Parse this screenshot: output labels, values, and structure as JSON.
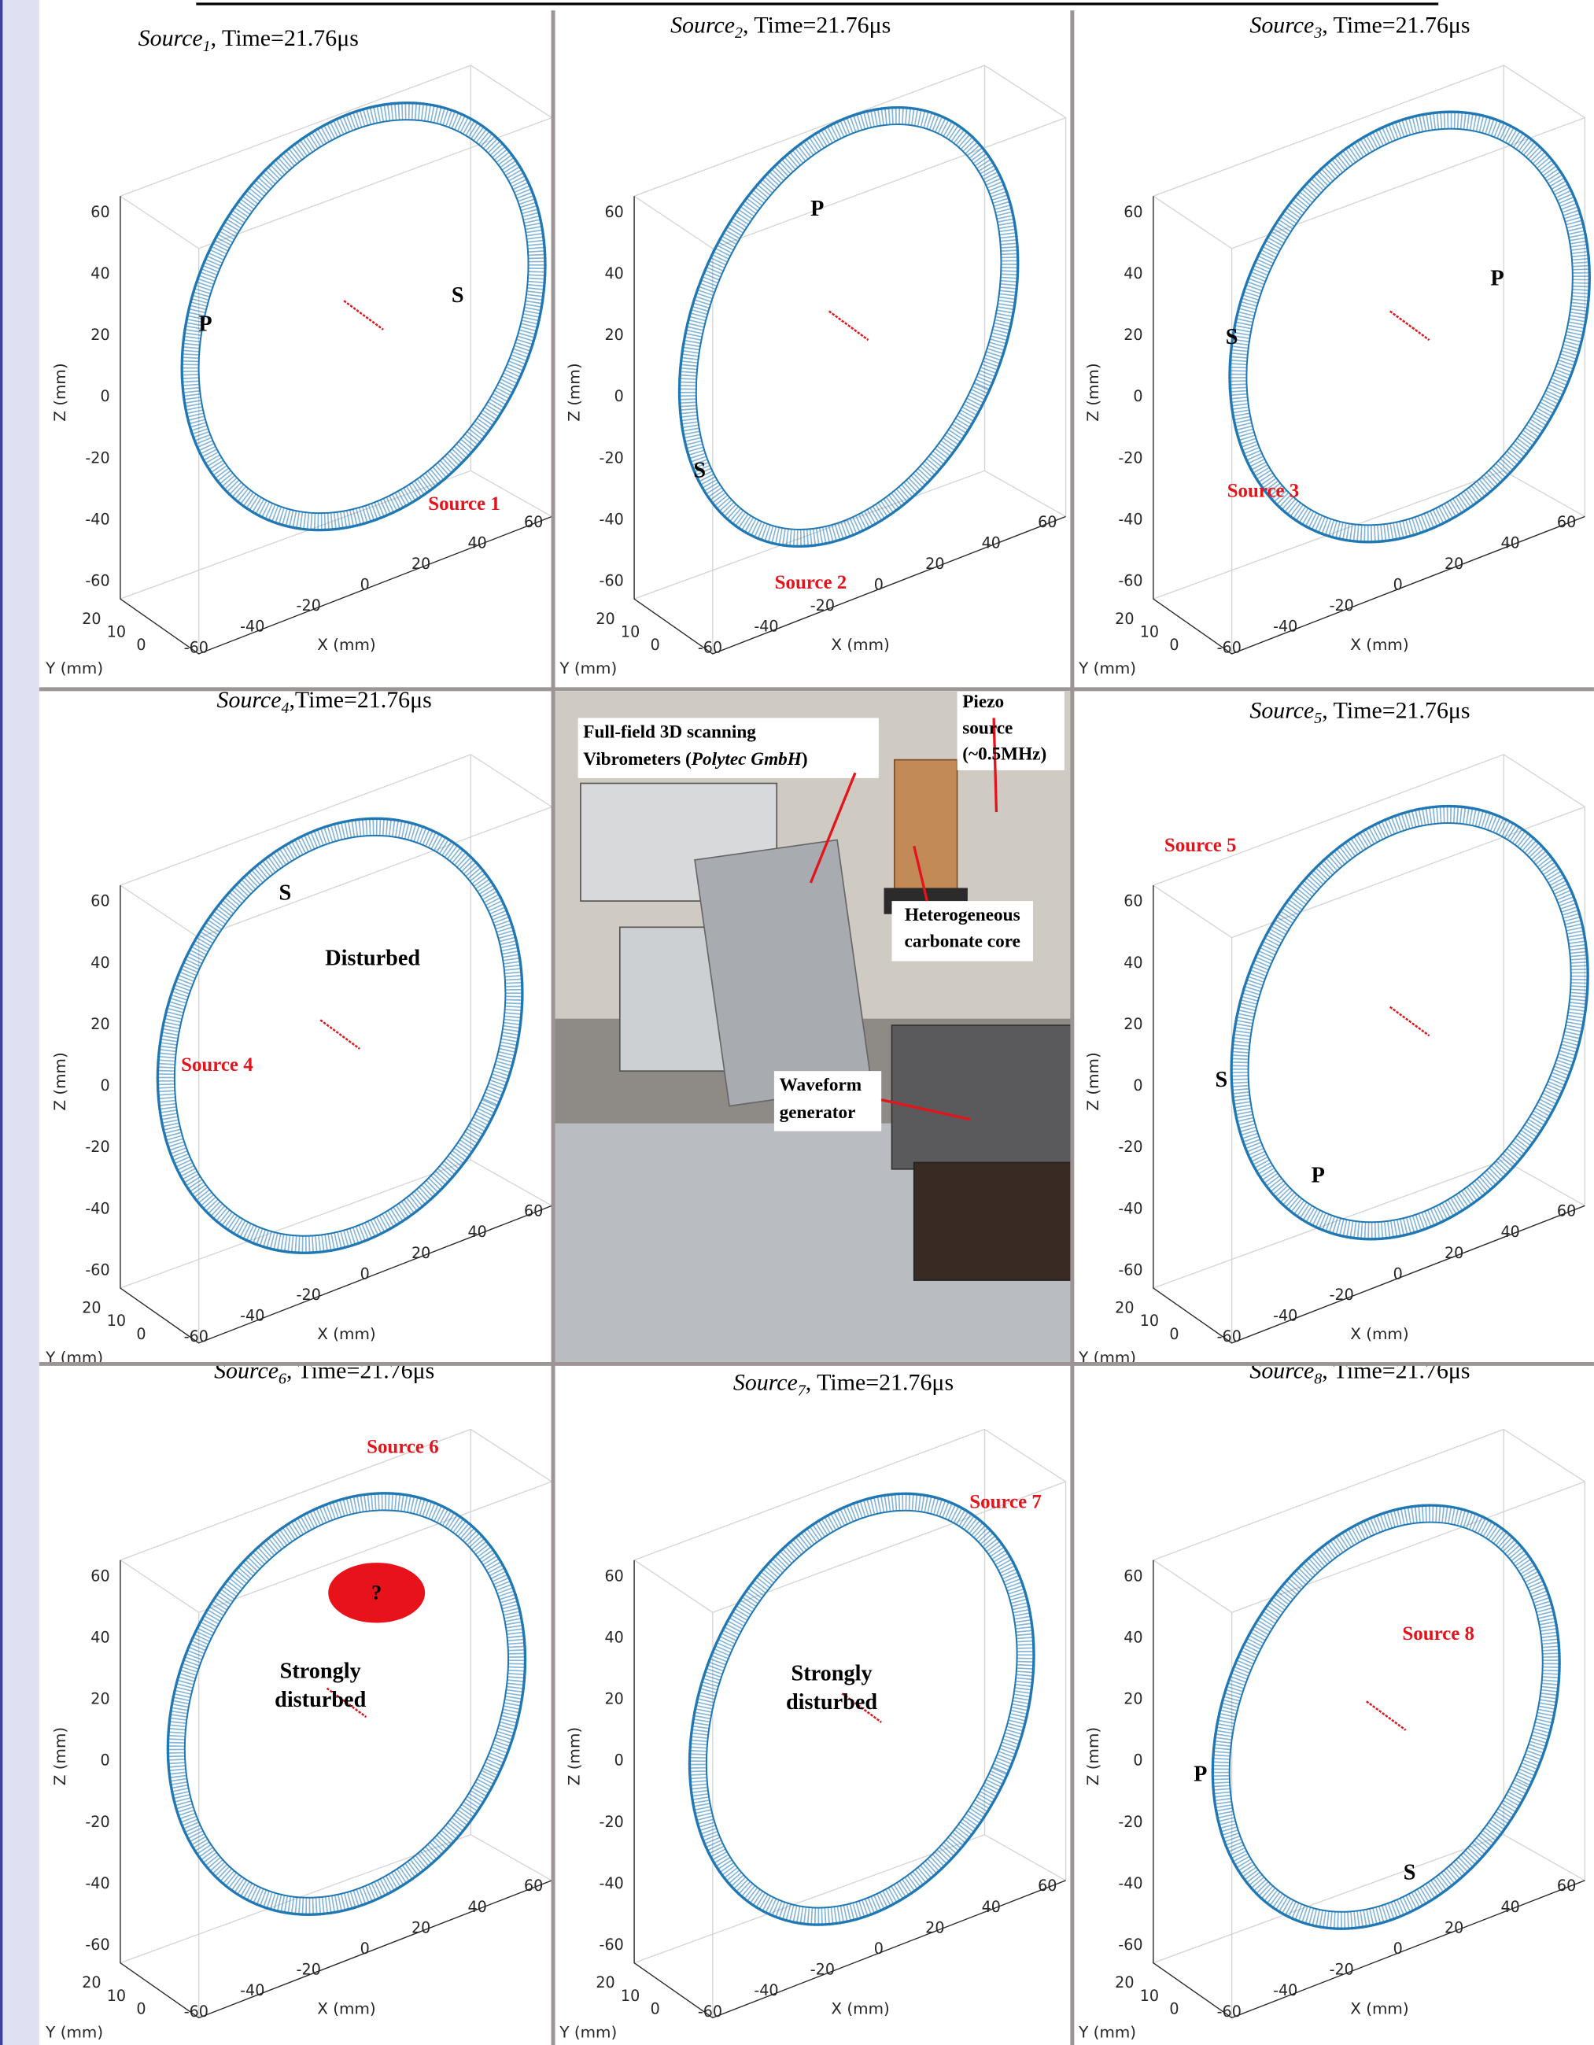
{
  "axes": {
    "z_ticks": [
      "60",
      "40",
      "20",
      "0",
      "-20",
      "-40",
      "-60"
    ],
    "x_ticks": [
      "-60",
      "-40",
      "-20",
      "0",
      "20",
      "40",
      "60"
    ],
    "y_ticks": [
      "20",
      "10",
      "0"
    ],
    "x_label": "X (mm)",
    "y_label": "Y (mm)",
    "z_label": "Z (mm)"
  },
  "panels": [
    {
      "title": {
        "source": "Source",
        "index": "1",
        "time": ", Time=21.76μs"
      },
      "labels": [
        {
          "text": "P",
          "kind": "wave"
        },
        {
          "text": "S",
          "kind": "wave"
        },
        {
          "text": "Source 1",
          "kind": "source"
        }
      ]
    },
    {
      "title": {
        "source": "Source",
        "index": "2",
        "time": ", Time=21.76μs"
      },
      "labels": [
        {
          "text": "P",
          "kind": "wave"
        },
        {
          "text": "S",
          "kind": "wave"
        },
        {
          "text": "Source 2",
          "kind": "source"
        }
      ]
    },
    {
      "title": {
        "source": "Source",
        "index": "3",
        "time": ", Time=21.76μs"
      },
      "labels": [
        {
          "text": "P",
          "kind": "wave"
        },
        {
          "text": "S",
          "kind": "wave"
        },
        {
          "text": "Source 3",
          "kind": "source"
        }
      ]
    },
    {
      "title": {
        "source": "Source",
        "index": "4",
        "time": ",Time=21.76μs"
      },
      "labels": [
        {
          "text": "S",
          "kind": "wave"
        },
        {
          "text": "Disturbed",
          "kind": "note"
        },
        {
          "text": "Source 4",
          "kind": "source"
        }
      ]
    },
    {
      "title": {
        "source": "Source",
        "index": "5",
        "time": ", Time=21.76μs"
      },
      "labels": [
        {
          "text": "Source 5",
          "kind": "source"
        },
        {
          "text": "S",
          "kind": "wave"
        },
        {
          "text": "P",
          "kind": "wave"
        }
      ]
    },
    {
      "title": {
        "source": "Source",
        "index": "6",
        "time": ", Time=21.76μs"
      },
      "labels": [
        {
          "text": "Source 6",
          "kind": "source"
        },
        {
          "text": "?",
          "kind": "mark"
        },
        {
          "text": "Strongly",
          "kind": "note"
        },
        {
          "text": "disturbed",
          "kind": "note"
        }
      ]
    },
    {
      "title": {
        "source": "Source",
        "index": "7",
        "time": ", Time=21.76μs"
      },
      "labels": [
        {
          "text": "Source 7",
          "kind": "source"
        },
        {
          "text": "Strongly",
          "kind": "note"
        },
        {
          "text": "disturbed",
          "kind": "note"
        }
      ]
    },
    {
      "title": {
        "source": "Source",
        "index": "8",
        "time": ", Time=21.76μs"
      },
      "labels": [
        {
          "text": "Source 8",
          "kind": "source"
        },
        {
          "text": "P",
          "kind": "wave"
        },
        {
          "text": "S",
          "kind": "wave"
        }
      ]
    }
  ],
  "photo": {
    "callouts": [
      {
        "lines": [
          [
            "Full-field 3D scanning"
          ],
          [
            "Vibrometers (",
            "Polytec GmbH",
            ")"
          ]
        ]
      },
      {
        "lines": [
          [
            "Piezo"
          ],
          [
            "source"
          ],
          [
            "(~0.5MHz)"
          ]
        ]
      },
      {
        "lines": [
          [
            "Heterogeneous"
          ],
          [
            "carbonate core"
          ]
        ]
      },
      {
        "lines": [
          [
            "Waveform"
          ],
          [
            "generator"
          ]
        ]
      }
    ]
  }
}
